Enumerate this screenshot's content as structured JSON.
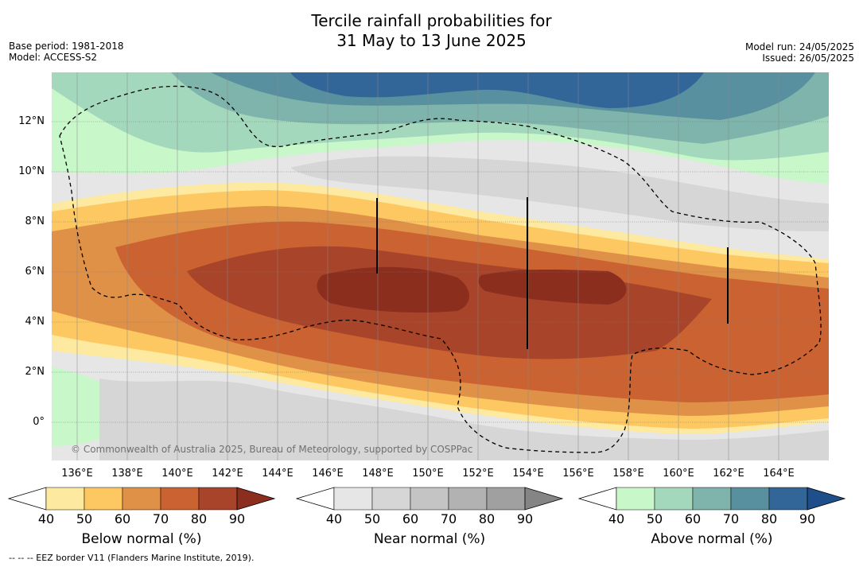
{
  "title_line1": "Tercile rainfall probabilities for",
  "title_line2": "31 May to 13 June 2025",
  "base_period": "Base period: 1981-2018",
  "model": "Model: ACCESS-S2",
  "model_run": "Model run: 24/05/2025",
  "issued": "Issued: 26/05/2025",
  "credit": "© Commonwealth of Australia 2025, Bureau of Meteorology, supported by COSPPac",
  "footnote": "-- -- -- EEZ border V11 (Flanders Marine Institute, 2019).",
  "lat_labels": [
    "12°N",
    "10°N",
    "8°N",
    "6°N",
    "4°N",
    "2°N",
    "0°"
  ],
  "lon_labels": [
    "136°E",
    "138°E",
    "140°E",
    "142°E",
    "144°E",
    "146°E",
    "148°E",
    "150°E",
    "152°E",
    "154°E",
    "156°E",
    "158°E",
    "160°E",
    "162°E",
    "164°E"
  ],
  "colorbars": [
    {
      "title": "Below normal (%)",
      "ticks": [
        "40",
        "50",
        "60",
        "70",
        "80",
        "90"
      ],
      "colors": [
        "#ffffff",
        "#fde9a0",
        "#fdc862",
        "#e09148",
        "#cb6231",
        "#a8442a",
        "#8b2e1e"
      ]
    },
    {
      "title": "Near normal (%)",
      "ticks": [
        "40",
        "50",
        "60",
        "70",
        "80",
        "90"
      ],
      "colors": [
        "#ffffff",
        "#e6e6e6",
        "#d6d6d6",
        "#c4c4c4",
        "#b2b2b2",
        "#a0a0a0",
        "#858585"
      ]
    },
    {
      "title": "Above normal (%)",
      "ticks": [
        "40",
        "50",
        "60",
        "70",
        "80",
        "90"
      ],
      "colors": [
        "#ffffff",
        "#c8f7c9",
        "#a3d8bd",
        "#7eb4ab",
        "#5990a0",
        "#336698",
        "#1f4f8a"
      ]
    }
  ]
}
